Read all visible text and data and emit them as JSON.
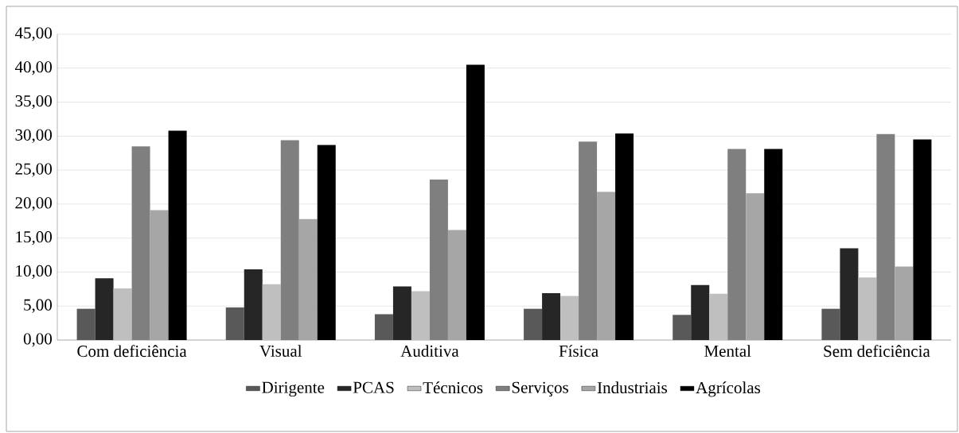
{
  "chart_data": {
    "type": "bar",
    "categories": [
      "Com deficiência",
      "Visual",
      "Auditiva",
      "Física",
      "Mental",
      "Sem deficiência"
    ],
    "series": [
      {
        "name": "Dirigente",
        "color": "#595959",
        "values": [
          4.6,
          4.8,
          3.8,
          4.6,
          3.7,
          4.6
        ]
      },
      {
        "name": "PCAS",
        "color": "#262626",
        "values": [
          9.1,
          10.4,
          7.9,
          6.9,
          8.1,
          13.5
        ]
      },
      {
        "name": "Técnicos",
        "color": "#bfbfbf",
        "values": [
          7.6,
          8.2,
          7.2,
          6.5,
          6.8,
          9.2
        ]
      },
      {
        "name": "Serviços",
        "color": "#7f7f7f",
        "values": [
          28.5,
          29.4,
          23.6,
          29.2,
          28.1,
          30.3
        ]
      },
      {
        "name": "Industriais",
        "color": "#a6a6a6",
        "values": [
          19.1,
          17.8,
          16.2,
          21.8,
          21.6,
          10.8
        ]
      },
      {
        "name": "Agrícolas",
        "color": "#000000",
        "values": [
          30.8,
          28.7,
          40.5,
          30.4,
          28.1,
          29.5
        ]
      }
    ],
    "ylim": [
      0,
      45
    ],
    "yticks": [
      {
        "value": 0,
        "label": "0,00"
      },
      {
        "value": 5,
        "label": "5,00"
      },
      {
        "value": 10,
        "label": "10,00"
      },
      {
        "value": 15,
        "label": "15,00"
      },
      {
        "value": 20,
        "label": "20,00"
      },
      {
        "value": 25,
        "label": "25,00"
      },
      {
        "value": 30,
        "label": "30,00"
      },
      {
        "value": 35,
        "label": "35,00"
      },
      {
        "value": 40,
        "label": "40,00"
      },
      {
        "value": 45,
        "label": "45,00"
      }
    ],
    "grid": "y",
    "legend": "bottom"
  }
}
